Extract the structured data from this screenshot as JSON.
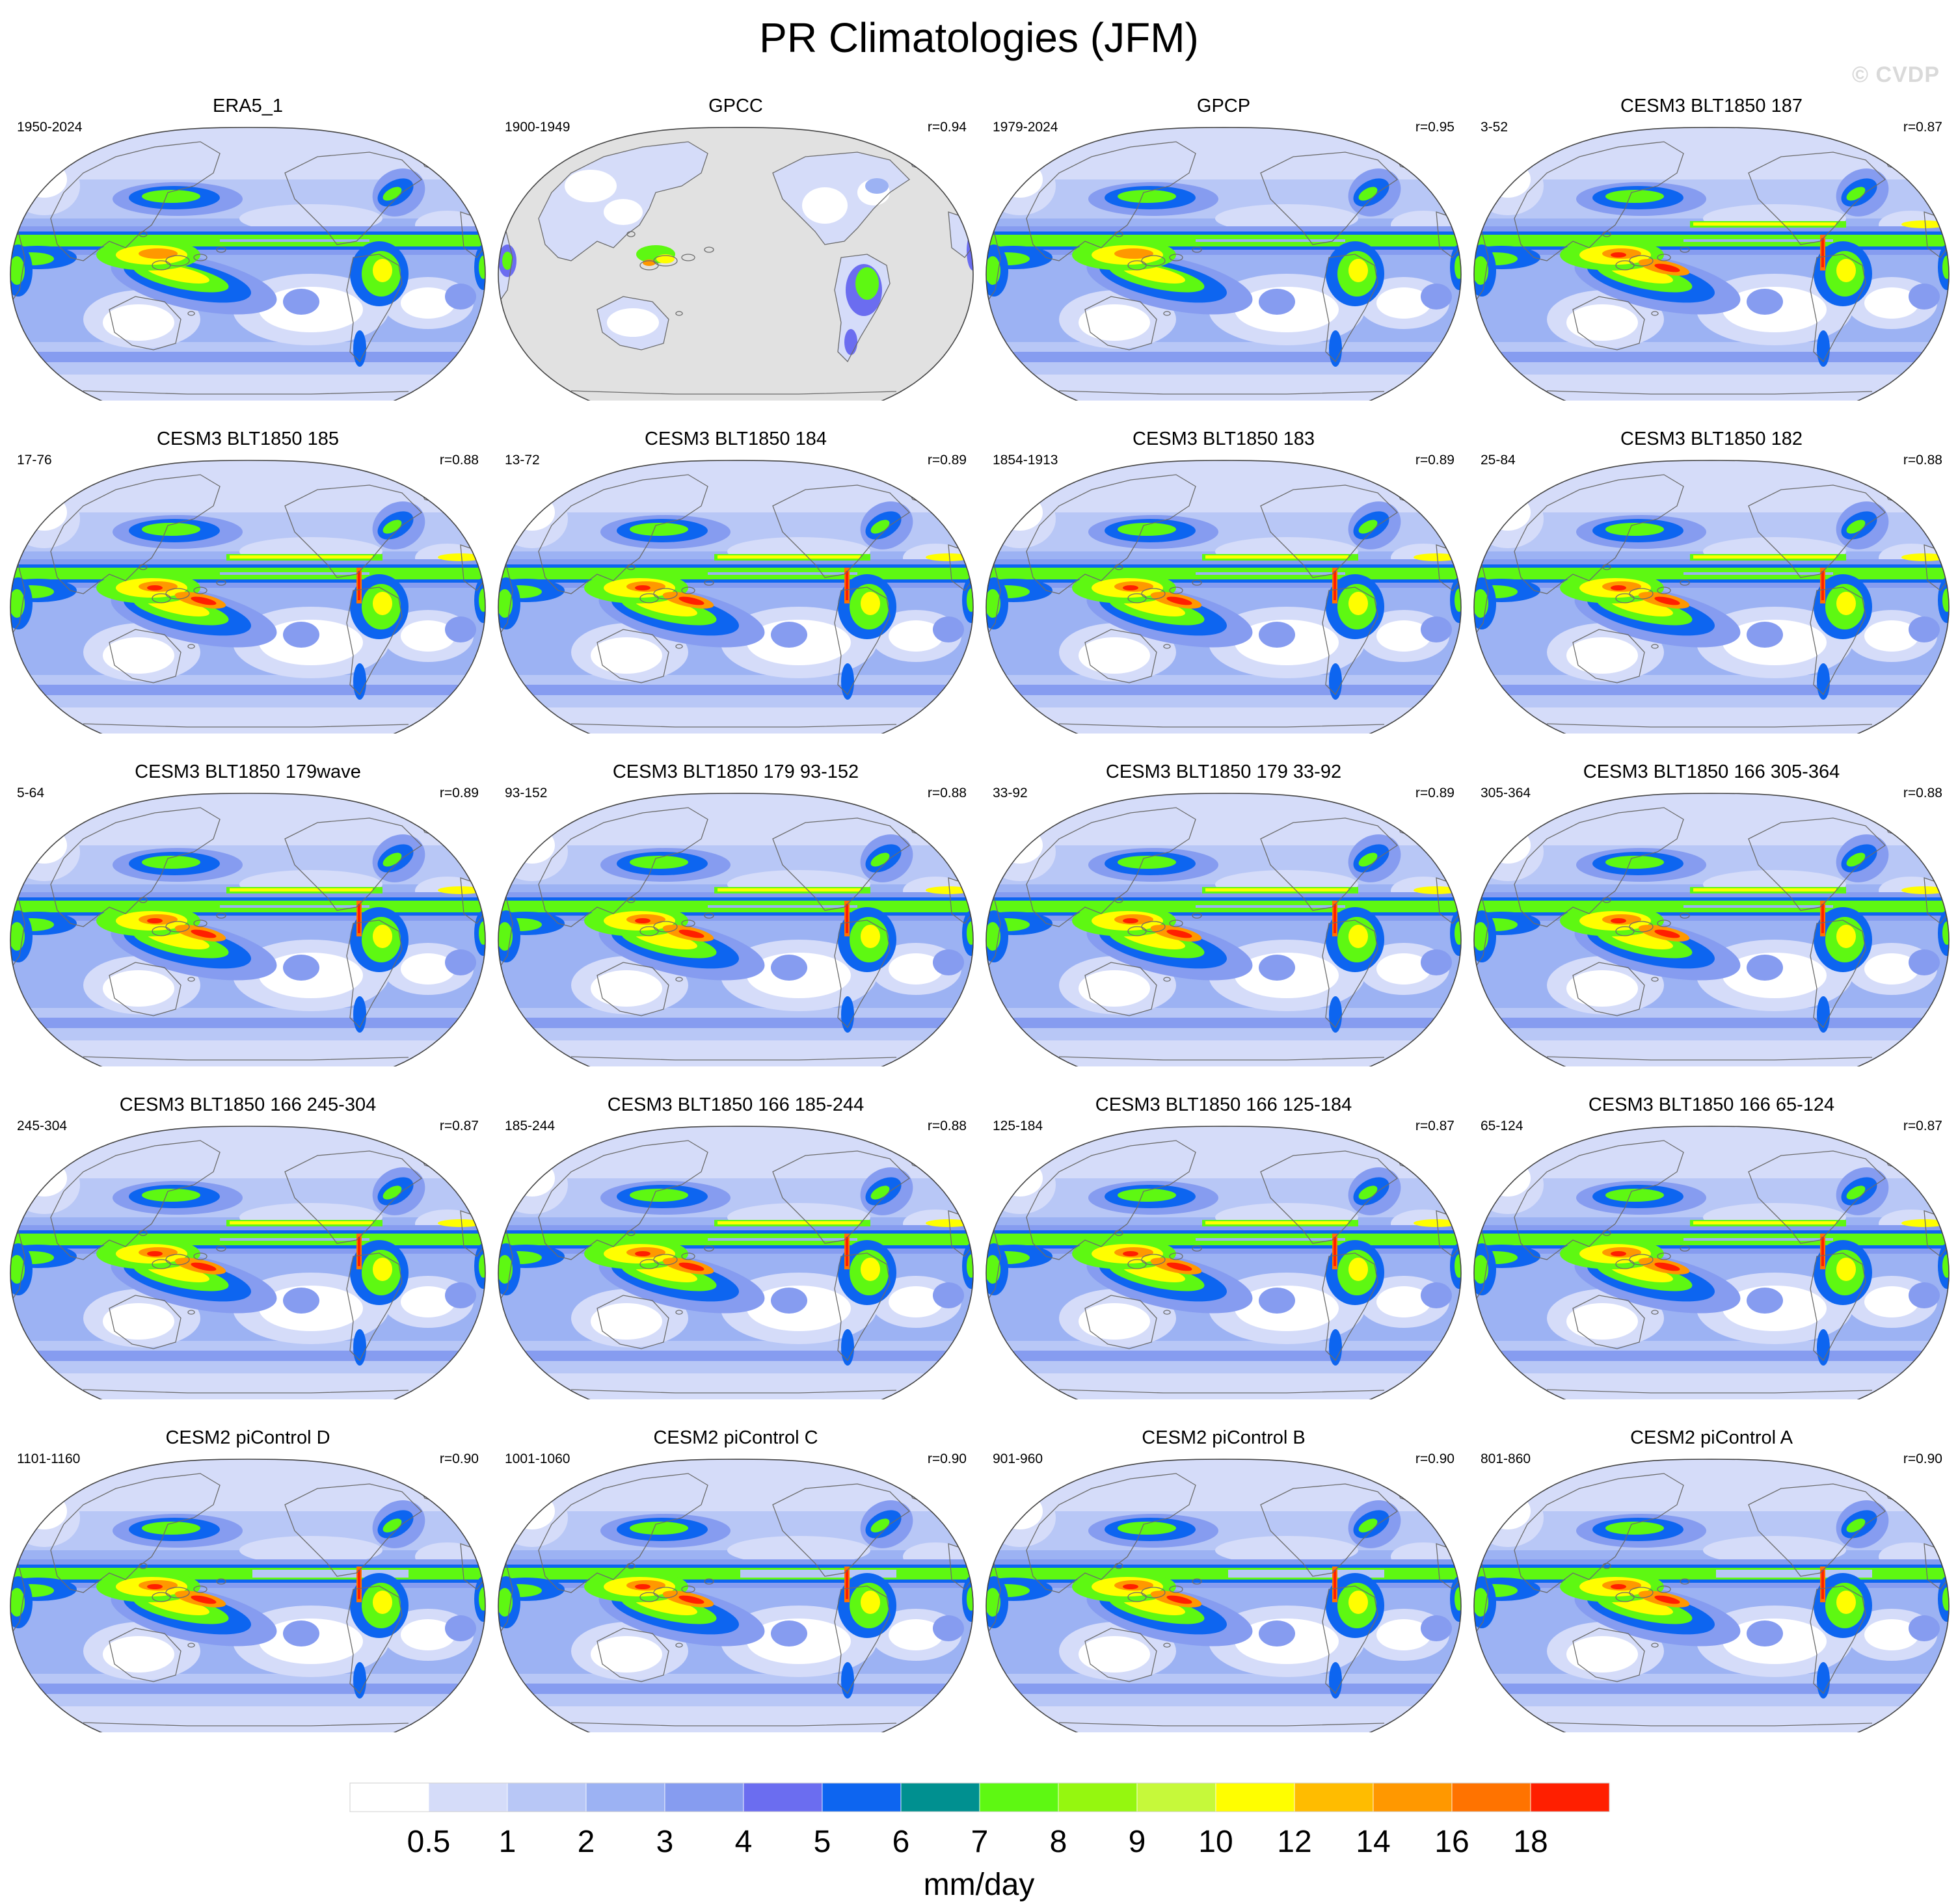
{
  "title": "PR Climatologies (JFM)",
  "watermark": "© CVDP",
  "colorbar": {
    "label": "mm/day",
    "tick_labels": [
      "0.5",
      "1",
      "2",
      "3",
      "4",
      "5",
      "6",
      "7",
      "8",
      "9",
      "10",
      "12",
      "14",
      "16",
      "18"
    ],
    "colors": [
      "#ffffff",
      "#d5dcf9",
      "#b8c7f6",
      "#9cb2f3",
      "#869cf0",
      "#6b6df0",
      "#0d65f0",
      "#009090",
      "#5ef812",
      "#95f70f",
      "#c6f93a",
      "#fffe00",
      "#ffbc00",
      "#ff9800",
      "#ff7300",
      "#ff1f00"
    ]
  },
  "land_mask_color": "#e1e1e1",
  "panels": [
    {
      "title": "ERA5_1",
      "period": "1950-2024",
      "corr": "",
      "style": "obs"
    },
    {
      "title": "GPCC",
      "period": "1900-1949",
      "corr": "r=0.94",
      "style": "land"
    },
    {
      "title": "GPCP",
      "period": "1979-2024",
      "corr": "r=0.95",
      "style": "obs"
    },
    {
      "title": "CESM3 BLT1850 187",
      "period": "3-52",
      "corr": "r=0.87",
      "style": "model"
    },
    {
      "title": "CESM3 BLT1850 185",
      "period": "17-76",
      "corr": "r=0.88",
      "style": "model"
    },
    {
      "title": "CESM3 BLT1850 184",
      "period": "13-72",
      "corr": "r=0.89",
      "style": "model"
    },
    {
      "title": "CESM3 BLT1850 183",
      "period": "1854-1913",
      "corr": "r=0.89",
      "style": "model"
    },
    {
      "title": "CESM3 BLT1850 182",
      "period": "25-84",
      "corr": "r=0.88",
      "style": "model"
    },
    {
      "title": "CESM3 BLT1850 179wave",
      "period": "5-64",
      "corr": "r=0.89",
      "style": "model"
    },
    {
      "title": "CESM3 BLT1850 179 93-152",
      "period": "93-152",
      "corr": "r=0.88",
      "style": "model"
    },
    {
      "title": "CESM3 BLT1850 179 33-92",
      "period": "33-92",
      "corr": "r=0.89",
      "style": "model"
    },
    {
      "title": "CESM3 BLT1850 166 305-364",
      "period": "305-364",
      "corr": "r=0.88",
      "style": "model"
    },
    {
      "title": "CESM3 BLT1850 166 245-304",
      "period": "245-304",
      "corr": "r=0.87",
      "style": "model"
    },
    {
      "title": "CESM3 BLT1850 166 185-244",
      "period": "185-244",
      "corr": "r=0.88",
      "style": "model"
    },
    {
      "title": "CESM3 BLT1850 166 125-184",
      "period": "125-184",
      "corr": "r=0.87",
      "style": "model"
    },
    {
      "title": "CESM3 BLT1850 166 65-124",
      "period": "65-124",
      "corr": "r=0.87",
      "style": "model"
    },
    {
      "title": "CESM2 piControl D",
      "period": "1101-1160",
      "corr": "r=0.90",
      "style": "cesm2"
    },
    {
      "title": "CESM2 piControl C",
      "period": "1001-1060",
      "corr": "r=0.90",
      "style": "cesm2"
    },
    {
      "title": "CESM2 piControl B",
      "period": "901-960",
      "corr": "r=0.90",
      "style": "cesm2"
    },
    {
      "title": "CESM2 piControl A",
      "period": "801-860",
      "corr": "r=0.90",
      "style": "cesm2"
    }
  ]
}
